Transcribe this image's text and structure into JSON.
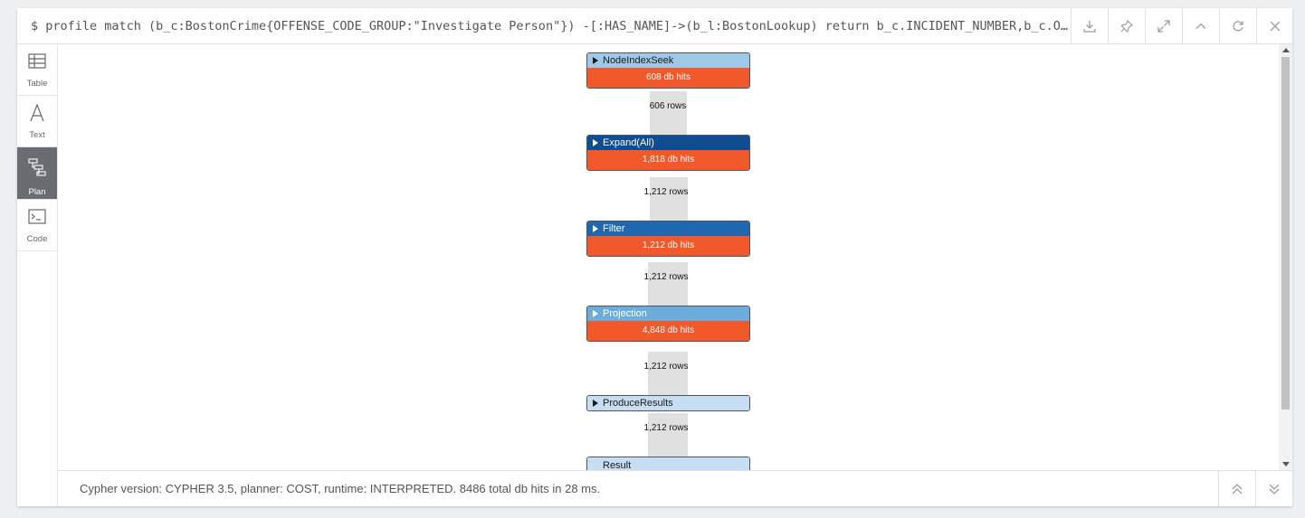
{
  "header": {
    "query": "$ profile match (b_c:BostonCrime{OFFENSE_CODE_GROUP:\"Investigate Person\"}) -[:HAS_NAME]->(b_l:BostonLookup) return b_c.INCIDENT_NUMBER,b_c.OFFENSE_CODE_GROUP,b_l.DISTRICT",
    "icons": [
      "download-icon",
      "pin-icon",
      "expand-icon",
      "collapse-up-icon",
      "refresh-icon",
      "close-icon"
    ]
  },
  "sidebar": {
    "items": [
      {
        "label": "Table",
        "icon": "table-icon"
      },
      {
        "label": "Text",
        "icon": "text-icon"
      },
      {
        "label": "Plan",
        "icon": "plan-icon"
      },
      {
        "label": "Code",
        "icon": "code-icon"
      }
    ],
    "active": "Plan"
  },
  "plan": {
    "operators": [
      {
        "name": "NodeIndexSeek",
        "db_hits": "608 db hits",
        "rows": "606 rows",
        "title_color": "#9ec9e8",
        "text_color": "#1a1a1a"
      },
      {
        "name": "Expand(All)",
        "db_hits": "1,818 db hits",
        "rows": "1,212 rows",
        "title_color": "#0f4c91",
        "text_color": "#ffffff"
      },
      {
        "name": "Filter",
        "db_hits": "1,212 db hits",
        "rows": "1,212 rows",
        "title_color": "#1f67b1",
        "text_color": "#ffffff"
      },
      {
        "name": "Projection",
        "db_hits": "4,848 db hits",
        "rows": "1,212 rows",
        "title_color": "#6aaddc",
        "text_color": "#ffffff"
      },
      {
        "name": "ProduceResults",
        "db_hits": "",
        "rows": "1,212 rows",
        "title_color": "#c6ddf2",
        "text_color": "#1a1a1a"
      },
      {
        "name": "Result",
        "db_hits": "",
        "rows": "",
        "title_color": "#c6ddf2",
        "text_color": "#1a1a1a"
      }
    ]
  },
  "footer": {
    "summary": "Cypher version: CYPHER 3.5, planner: COST, runtime: INTERPRETED. 8486 total db hits in 28 ms."
  }
}
